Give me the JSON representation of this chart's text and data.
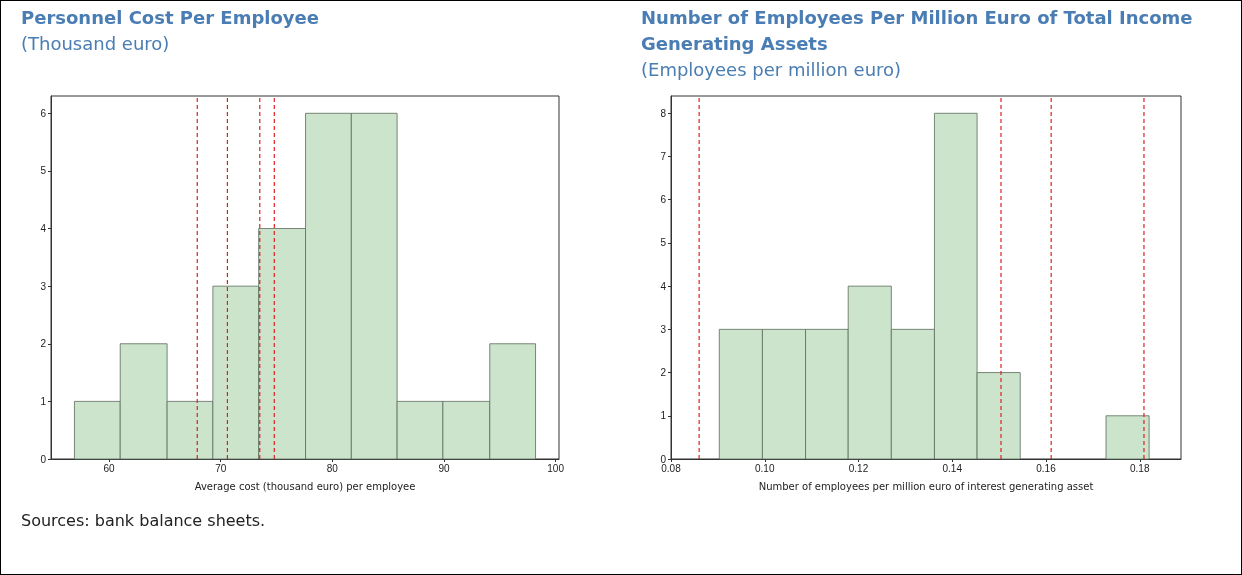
{
  "chart_data": [
    {
      "type": "histogram",
      "title": "Personnel Cost Per Employee",
      "subtitle": "(Thousand euro)",
      "xlabel": "Average cost (thousand euro) per employee",
      "color": "#cce4cc",
      "bins": [
        56.9,
        61.0,
        65.2,
        69.3,
        73.4,
        77.6,
        81.7,
        85.8,
        89.9,
        94.1,
        98.2
      ],
      "values": [
        1,
        2,
        1,
        3,
        4,
        6,
        6,
        1,
        1,
        2
      ],
      "xlim": [
        54.8,
        100.3
      ],
      "xticks": [
        60,
        70,
        80,
        90,
        100
      ],
      "ylim": [
        0,
        6.3
      ],
      "yticks": [
        0,
        1,
        2,
        3,
        4,
        5,
        6
      ],
      "ref_lines": [
        {
          "axis": "x",
          "value": 67.9,
          "color": "#e02020",
          "line_style": "dashed"
        },
        {
          "axis": "x",
          "value": 70.6,
          "color": "#e02020",
          "line_style": "dashed"
        },
        {
          "axis": "x",
          "value": 73.5,
          "color": "#e02020",
          "line_style": "dashed"
        },
        {
          "axis": "x",
          "value": 74.8,
          "color": "#e02020",
          "line_style": "dashed"
        }
      ],
      "annotations": [
        "Sources: bank balance sheets."
      ]
    },
    {
      "type": "histogram",
      "title": "Number of Employees Per Million Euro of Total Income Generating Assets",
      "subtitle": "(Employees per million euro)",
      "xlabel": "Number of employees per million euro of interest generating asset",
      "color": "#cce4cc",
      "bins": [
        0.0903,
        0.0995,
        0.1087,
        0.1178,
        0.127,
        0.1362,
        0.1453,
        0.1545,
        0.1637,
        0.1728,
        0.182
      ],
      "values": [
        3,
        3,
        3,
        4,
        3,
        8,
        2,
        0,
        0,
        1
      ],
      "xlim": [
        0.08,
        0.1888
      ],
      "xticks": [
        {
          "value": 0.08,
          "label": "0.08"
        },
        {
          "value": 0.1,
          "label": "0.10"
        },
        {
          "value": 0.12,
          "label": "0.12"
        },
        {
          "value": 0.14,
          "label": "0.14"
        },
        {
          "value": 0.16,
          "label": "0.16"
        },
        {
          "value": 0.18,
          "label": "0.18"
        }
      ],
      "ylim": [
        0,
        8.4
      ],
      "yticks": [
        0,
        1,
        2,
        3,
        4,
        5,
        6,
        7,
        8
      ],
      "ref_lines": [
        {
          "axis": "x",
          "value": 0.086,
          "color": "#e02020",
          "line_style": "dashed"
        },
        {
          "axis": "x",
          "value": 0.1504,
          "color": "#e02020",
          "line_style": "dashed"
        },
        {
          "axis": "x",
          "value": 0.1611,
          "color": "#e02020",
          "line_style": "dashed"
        },
        {
          "axis": "x",
          "value": 0.1809,
          "color": "#e02020",
          "line_style": "dashed"
        }
      ]
    }
  ]
}
